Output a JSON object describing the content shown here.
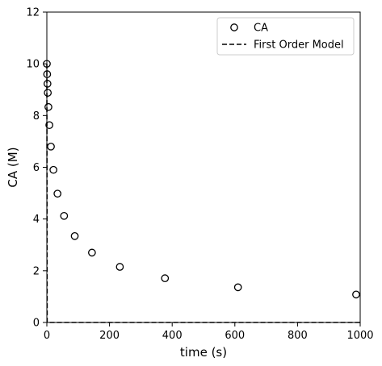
{
  "chart_data": {
    "type": "scatter",
    "xlabel": "time (s)",
    "ylabel": "CA (M)",
    "xlim": [
      0,
      1000
    ],
    "ylim": [
      0,
      12
    ],
    "xticks": [
      0,
      200,
      400,
      600,
      800,
      1000
    ],
    "yticks": [
      0,
      2,
      4,
      6,
      8,
      10,
      12
    ],
    "grid": false,
    "legend_position": "top-right",
    "series": [
      {
        "name": "CA",
        "kind": "scatter",
        "marker": "open-circle",
        "color": "#000000",
        "x": [
          0,
          1,
          2,
          3,
          5,
          8,
          13,
          21,
          34,
          55,
          89,
          144,
          233,
          377,
          610,
          987
        ],
        "y": [
          10.0,
          9.6,
          9.23,
          8.88,
          8.33,
          7.63,
          6.8,
          5.9,
          4.98,
          4.12,
          3.34,
          2.7,
          2.15,
          1.71,
          1.36,
          1.08
        ]
      },
      {
        "name": "First Order Model",
        "kind": "line",
        "style": "dashed",
        "color": "#000000",
        "x": [
          0,
          1,
          2,
          3,
          5,
          10,
          20,
          50,
          100,
          200,
          500,
          1000
        ],
        "y": [
          10.0,
          0.0,
          0.0,
          0.0,
          0.0,
          0.0,
          0.0,
          0.0,
          0.0,
          0.0,
          0.0,
          0.0
        ]
      }
    ]
  }
}
